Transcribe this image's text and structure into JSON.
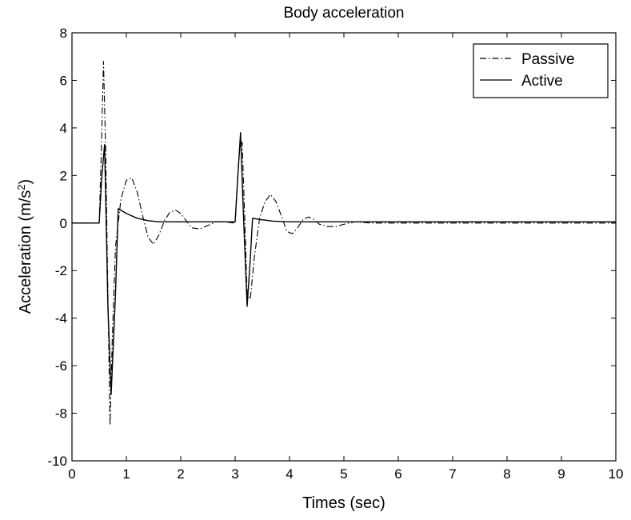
{
  "chart_data": {
    "type": "line",
    "title": "Body acceleration",
    "xlabel": "Times (sec)",
    "ylabel_main": "Acceleration (m/s",
    "ylabel_sup": "2",
    "ylabel_close": ")",
    "xlim": [
      0,
      10
    ],
    "ylim": [
      -10,
      8
    ],
    "xticks": [
      0,
      1,
      2,
      3,
      4,
      5,
      6,
      7,
      8,
      9,
      10
    ],
    "yticks": [
      -10,
      -8,
      -6,
      -4,
      -2,
      0,
      2,
      4,
      6,
      8
    ],
    "grid": false,
    "legend_position": "top-right",
    "series": [
      {
        "name": "Passive",
        "style": "dashdot",
        "color": "#000000",
        "x": [
          0,
          0.5,
          0.54,
          0.58,
          0.62,
          0.66,
          0.7,
          0.74,
          0.8,
          0.9,
          1.0,
          1.1,
          1.2,
          1.3,
          1.4,
          1.5,
          1.6,
          1.7,
          1.8,
          1.9,
          2.0,
          2.1,
          2.2,
          2.35,
          2.5,
          2.65,
          2.8,
          3.0,
          3.08,
          3.13,
          3.18,
          3.22,
          3.28,
          3.35,
          3.45,
          3.55,
          3.65,
          3.75,
          3.85,
          3.95,
          4.05,
          4.15,
          4.25,
          4.35,
          4.45,
          4.55,
          4.7,
          4.85,
          5.0,
          5.2,
          5.5,
          10
        ],
        "y": [
          0,
          0,
          3.0,
          6.8,
          3.0,
          -3.0,
          -8.5,
          -5.0,
          -1.0,
          1.0,
          1.8,
          1.9,
          1.3,
          0.3,
          -0.6,
          -0.9,
          -0.5,
          0.1,
          0.45,
          0.55,
          0.4,
          0.1,
          -0.2,
          -0.25,
          -0.1,
          0.05,
          0.05,
          0.0,
          3.0,
          3.4,
          0.0,
          -3.0,
          -3.2,
          -1.5,
          0.2,
          0.9,
          1.2,
          0.9,
          0.3,
          -0.35,
          -0.45,
          -0.2,
          0.15,
          0.25,
          0.15,
          -0.05,
          -0.15,
          -0.15,
          -0.05,
          0.05,
          0.0,
          0.0
        ]
      },
      {
        "name": "Active",
        "style": "solid",
        "color": "#000000",
        "x": [
          0,
          0.5,
          0.55,
          0.6,
          0.66,
          0.72,
          0.8,
          0.85,
          1.0,
          1.2,
          1.4,
          1.6,
          2.0,
          3.0,
          3.05,
          3.1,
          3.15,
          3.22,
          3.28,
          3.32,
          3.45,
          3.7,
          4.0,
          5.0,
          10
        ],
        "y": [
          0,
          0,
          2.0,
          3.3,
          -3.5,
          -7.2,
          -3.0,
          0.6,
          0.4,
          0.2,
          0.1,
          0.05,
          0.05,
          0.05,
          2.0,
          3.8,
          0.5,
          -3.5,
          -1.5,
          0.2,
          0.15,
          0.08,
          0.05,
          0.05,
          0.05
        ]
      }
    ]
  }
}
